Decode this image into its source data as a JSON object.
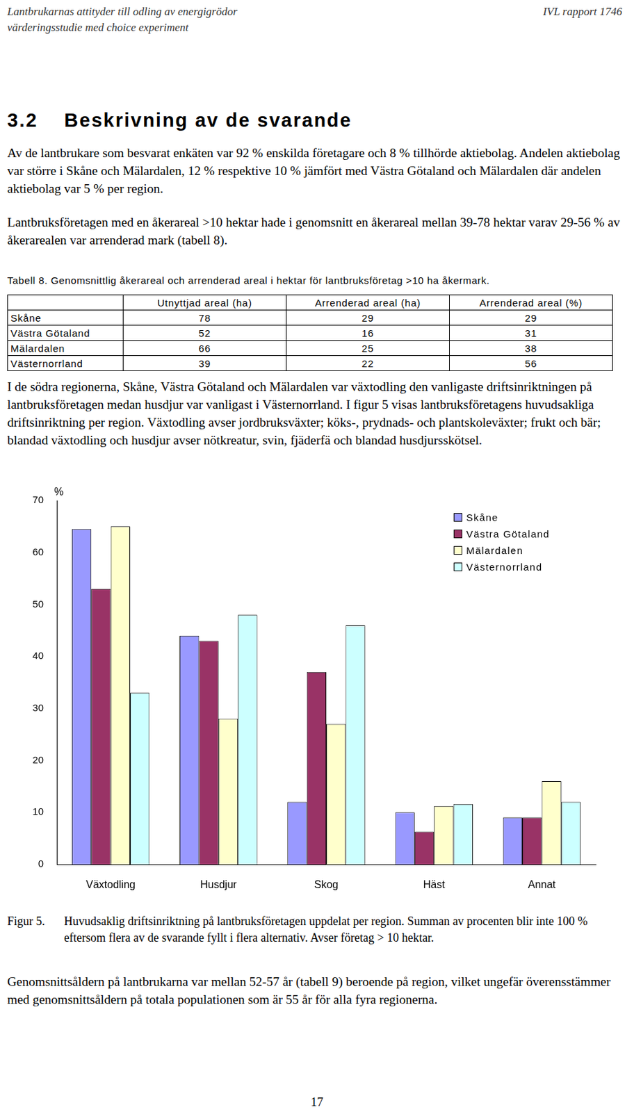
{
  "header": {
    "left": [
      "Lantbrukarnas attityder till odling av energigrödor",
      "värderingsstudie med choice experiment"
    ],
    "right": "IVL rapport 1746"
  },
  "section": {
    "number": "3.2",
    "title": "Beskrivning av de svarande"
  },
  "paragraphs_before_table": [
    "Av de lantbrukare som besvarat enkäten var 92 % enskilda företagare och 8 % tillhörde aktiebolag. Andelen aktiebolag var större i Skåne och Mälardalen, 12 % respektive 10 % jämfört med Västra Götaland och Mälardalen där andelen aktiebolag var 5 % per region.",
    "Lantbruksföretagen med en åkerareal >10 hektar hade i genomsnitt en åkerareal mellan 39-78 hektar varav 29-56 % av åkerarealen var arrenderad mark (tabell 8)."
  ],
  "table": {
    "caption": "Tabell 8. Genomsnittlig åkerareal och arrenderad areal i hektar för lantbruksföretag >10 ha åkermark.",
    "columns": [
      "Utnyttjad areal (ha)",
      "Arrenderad areal (ha)",
      "Arrenderad areal (%)"
    ],
    "rows": [
      {
        "region": "Skåne",
        "values": [
          78,
          29,
          29
        ]
      },
      {
        "region": "Västra Götaland",
        "values": [
          52,
          16,
          31
        ]
      },
      {
        "region": "Mälardalen",
        "values": [
          66,
          25,
          38
        ]
      },
      {
        "region": "Västernorrland",
        "values": [
          39,
          22,
          56
        ]
      }
    ]
  },
  "paragraphs_after_table": [
    "I de södra regionerna, Skåne, Västra Götaland och Mälardalen var växtodling den vanligaste driftsinriktningen på lantbruksföretagen medan husdjur var vanligast i Västernorrland. I figur 5 visas lantbruksföretagens huvudsakliga driftsinriktning per region. Växtodling avser jordbruksväxter; köks-, prydnads- och plantskoleväxter; frukt och bär; blandad växtodling och husdjur avser nötkreatur, svin, fjäderfä och blandad husdjursskötsel."
  ],
  "chart_data": {
    "type": "bar",
    "y_label": "%",
    "categories": [
      "Växtodling",
      "Husdjur",
      "Skog",
      "Häst",
      "Annat"
    ],
    "series": [
      {
        "name": "Skåne",
        "color": "#9999ff",
        "values": [
          64.5,
          44,
          12,
          10,
          9
        ]
      },
      {
        "name": "Västra Götaland",
        "color": "#993366",
        "values": [
          53,
          43,
          37,
          6.3,
          9
        ]
      },
      {
        "name": "Mälardalen",
        "color": "#ffffcc",
        "values": [
          65,
          28,
          27,
          11.2,
          16
        ]
      },
      {
        "name": "Västernorrland",
        "color": "#ccffff",
        "values": [
          33,
          48,
          46,
          11.6,
          12
        ]
      }
    ],
    "ylim": [
      0,
      70
    ],
    "yticks": [
      0,
      10,
      20,
      30,
      40,
      50,
      60,
      70
    ],
    "grid": false,
    "legend": "top right"
  },
  "figure_caption": {
    "label": "Figur 5.",
    "text": "Huvudsaklig driftsinriktning på lantbruksföretagen uppdelat per region. Summan av procenten blir inte 100 % eftersom flera av de svarande fyllt i flera alternativ. Avser företag > 10 hektar."
  },
  "paragraphs_after_figure": [
    "Genomsnittsåldern på lantbrukarna var mellan 52-57 år (tabell 9) beroende på region, vilket ungefär överensstämmer med genomsnittsåldern på totala populationen som är 55 år för alla fyra regionerna."
  ],
  "page_number": 17
}
